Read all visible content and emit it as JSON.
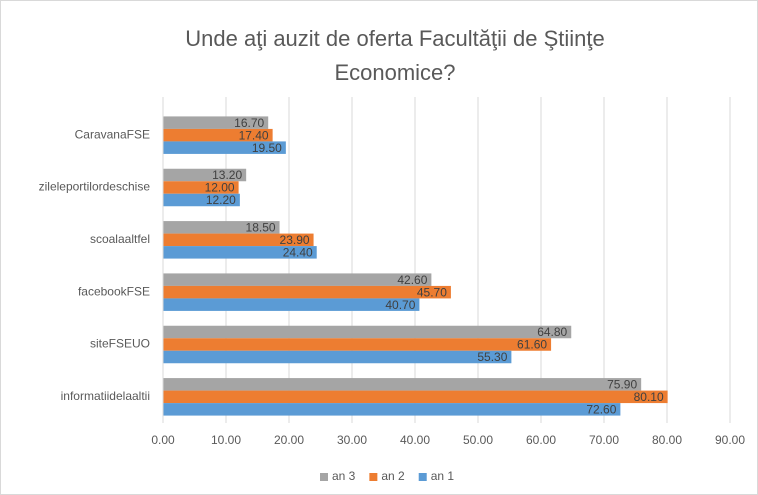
{
  "chart_data": {
    "type": "hbar",
    "title": "Unde aţi auzit de oferta Facultăţii de Ştiinţe Economice?",
    "categories": [
      "CaravanaFSE",
      "zileleportilordeschise",
      "scoalaaltfel",
      "facebookFSE",
      "siteFSEUO",
      "informatiidelaaltii"
    ],
    "series": [
      {
        "name": "an 3",
        "color": "#a5a5a5",
        "values": [
          16.7,
          13.2,
          18.5,
          42.6,
          64.8,
          75.9
        ],
        "value_labels": [
          "16.70",
          "13.20",
          "18.50",
          "42.60",
          "64.80",
          "75.90"
        ]
      },
      {
        "name": "an 2",
        "color": "#ed7d31",
        "values": [
          17.4,
          12.0,
          23.9,
          45.7,
          61.6,
          80.1
        ],
        "value_labels": [
          "17.40",
          "12.00",
          "23.90",
          "45.70",
          "61.60",
          "80.10"
        ]
      },
      {
        "name": "an 1",
        "color": "#5b9bd5",
        "values": [
          19.5,
          12.2,
          24.4,
          40.7,
          55.3,
          72.6
        ],
        "value_labels": [
          "19.50",
          "12.20",
          "24.40",
          "40.70",
          "55.30",
          "72.60"
        ]
      }
    ],
    "xlim": [
      0,
      90
    ],
    "xticks": [
      {
        "value": 0,
        "label": "0.00"
      },
      {
        "value": 10,
        "label": "10.00"
      },
      {
        "value": 20,
        "label": "20.00"
      },
      {
        "value": 30,
        "label": "30.00"
      },
      {
        "value": 40,
        "label": "40.00"
      },
      {
        "value": 50,
        "label": "50.00"
      },
      {
        "value": 60,
        "label": "60.00"
      },
      {
        "value": 70,
        "label": "70.00"
      },
      {
        "value": 80,
        "label": "80.00"
      },
      {
        "value": 90,
        "label": "90.00"
      }
    ],
    "grid": true,
    "legend": "bottom"
  }
}
